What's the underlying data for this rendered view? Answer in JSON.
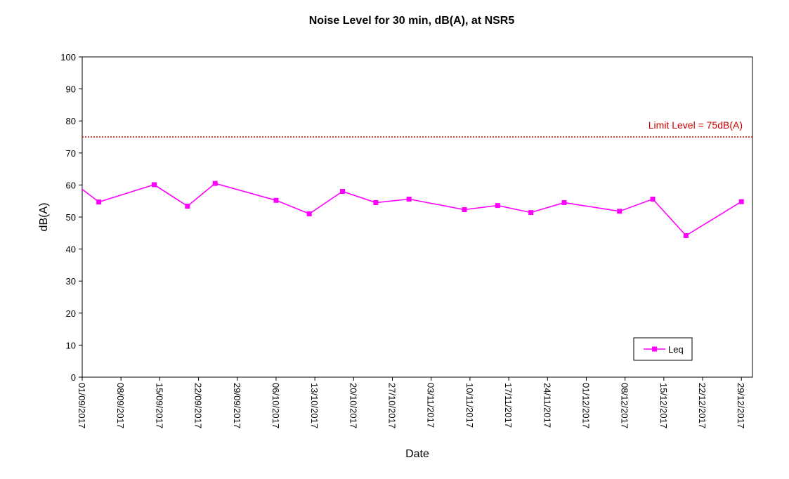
{
  "chart_data": {
    "type": "line",
    "title": "Noise Level for 30 min, dB(A), at NSR5",
    "xlabel": "Date",
    "ylabel": "dB(A)",
    "ylim": [
      0,
      100
    ],
    "yticks": [
      0,
      10,
      20,
      30,
      40,
      50,
      60,
      70,
      80,
      90,
      100
    ],
    "xlim": [
      "2017-09-01",
      "2017-12-31"
    ],
    "xticks": [
      {
        "date": "2017-09-01",
        "label": "01/09/2017"
      },
      {
        "date": "2017-09-08",
        "label": "08/09/2017"
      },
      {
        "date": "2017-09-15",
        "label": "15/09/2017"
      },
      {
        "date": "2017-09-22",
        "label": "22/09/2017"
      },
      {
        "date": "2017-09-29",
        "label": "29/09/2017"
      },
      {
        "date": "2017-10-06",
        "label": "06/10/2017"
      },
      {
        "date": "2017-10-13",
        "label": "13/10/2017"
      },
      {
        "date": "2017-10-20",
        "label": "20/10/2017"
      },
      {
        "date": "2017-10-27",
        "label": "27/10/2017"
      },
      {
        "date": "2017-11-03",
        "label": "03/11/2017"
      },
      {
        "date": "2017-11-10",
        "label": "10/11/2017"
      },
      {
        "date": "2017-11-17",
        "label": "17/11/2017"
      },
      {
        "date": "2017-11-24",
        "label": "24/11/2017"
      },
      {
        "date": "2017-12-01",
        "label": "01/12/2017"
      },
      {
        "date": "2017-12-08",
        "label": "08/12/2017"
      },
      {
        "date": "2017-12-15",
        "label": "15/12/2017"
      },
      {
        "date": "2017-12-22",
        "label": "22/12/2017"
      },
      {
        "date": "2017-12-29",
        "label": "29/12/2017"
      }
    ],
    "series": [
      {
        "name": "Leq",
        "color": "#ff00ff",
        "marker": "square",
        "points": [
          {
            "x": "2017-08-31",
            "y": 60.0
          },
          {
            "x": "2017-09-04",
            "y": 54.7
          },
          {
            "x": "2017-09-14",
            "y": 60.1
          },
          {
            "x": "2017-09-20",
            "y": 53.4
          },
          {
            "x": "2017-09-25",
            "y": 60.5
          },
          {
            "x": "2017-10-06",
            "y": 55.2
          },
          {
            "x": "2017-10-12",
            "y": 51.0
          },
          {
            "x": "2017-10-18",
            "y": 58.0
          },
          {
            "x": "2017-10-24",
            "y": 54.5
          },
          {
            "x": "2017-10-30",
            "y": 55.6
          },
          {
            "x": "2017-11-09",
            "y": 52.3
          },
          {
            "x": "2017-11-15",
            "y": 53.6
          },
          {
            "x": "2017-11-21",
            "y": 51.4
          },
          {
            "x": "2017-11-27",
            "y": 54.5
          },
          {
            "x": "2017-12-07",
            "y": 51.8
          },
          {
            "x": "2017-12-13",
            "y": 55.6
          },
          {
            "x": "2017-12-19",
            "y": 44.2
          },
          {
            "x": "2017-12-29",
            "y": 54.8
          }
        ]
      }
    ],
    "reference_lines": [
      {
        "y": 75,
        "label": "Limit Level = 75dB(A)",
        "color": "#cc0000",
        "style": "dotted"
      }
    ],
    "legend": {
      "position": "bottom-right",
      "entries": [
        "Leq"
      ]
    },
    "grid": false
  }
}
